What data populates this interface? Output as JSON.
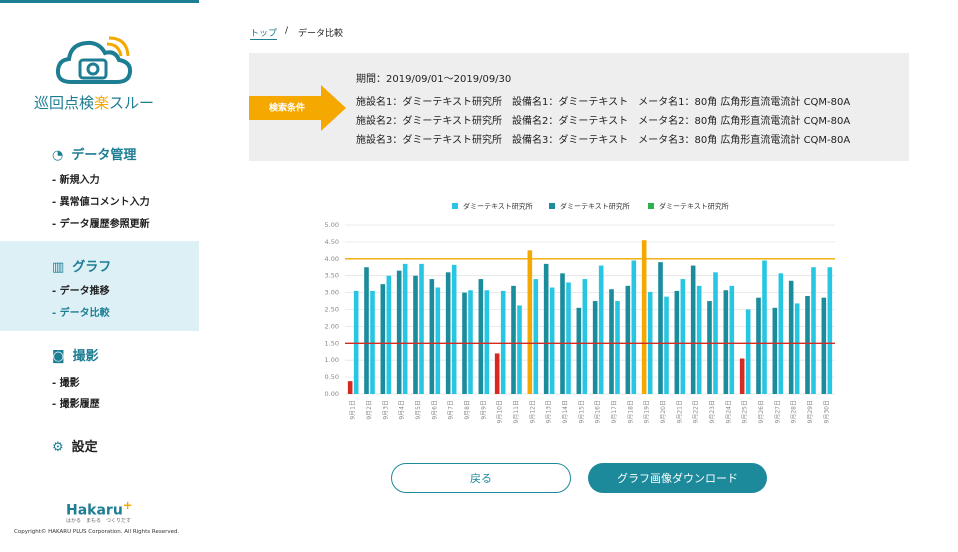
{
  "sidebar": {
    "logo_text": [
      "巡回点検",
      "楽",
      "スルー"
    ],
    "menu": [
      {
        "title": "データ管理",
        "items": [
          "- 新規入力",
          "- 異常値コメント入力",
          "- データ履歴参照更新"
        ]
      },
      {
        "title": "グラフ",
        "items": [
          "- データ推移",
          "- データ比較"
        ]
      },
      {
        "title": "撮影",
        "items": [
          "- 撮影",
          "- 撮影履歴"
        ]
      },
      {
        "title": "設定",
        "items": []
      }
    ],
    "brand": "Hakaru",
    "brand_mark": "+",
    "tagline": "はかる　まもる　つくりだす",
    "copyright": "Copyright© HAKARU PLUS Corporation. All Rights Reserved."
  },
  "breadcrumb": {
    "items": [
      "トップ",
      "データ比較"
    ],
    "separator": "/"
  },
  "search": {
    "label": "検索条件",
    "lines": [
      "期間：2019/09/01〜2019/09/30",
      "施設名1：ダミーテキスト研究所　設備名1：ダミーテキスト　メータ名1：80角 広角形直流電流計 CQM-80A",
      "施設名2：ダミーテキスト研究所　設備名2：ダミーテキスト　メータ名2：80角 広角形直流電流計 CQM-80A",
      "施設名3：ダミーテキスト研究所　設備名3：ダミーテキスト　メータ名3：80角 広角形直流電流計 CQM-80A"
    ]
  },
  "buttons": {
    "back": "戻る",
    "download": "グラフ画像ダウンロード"
  },
  "chart_data": {
    "type": "bar",
    "categories": [
      "9月1日",
      "9月2日",
      "9月3日",
      "9月4日",
      "9月5日",
      "9月6日",
      "9月7日",
      "9月8日",
      "9月9日",
      "9月10日",
      "9月11日",
      "9月12日",
      "9月13日",
      "9月14日",
      "9月15日",
      "9月16日",
      "9月17日",
      "9月18日",
      "9月19日",
      "9月20日",
      "9月21日",
      "9月22日",
      "9月23日",
      "9月24日",
      "9月25日",
      "9月26日",
      "9月27日",
      "9月28日",
      "9月29日",
      "9月30日"
    ],
    "series": [
      {
        "name": "ダミーテキスト研究所",
        "color": "#27c6e2",
        "values": [
          3.05,
          3.05,
          3.5,
          3.85,
          3.85,
          3.15,
          3.82,
          3.07,
          3.07,
          3.05,
          2.62,
          3.4,
          3.15,
          3.3,
          3.4,
          3.8,
          2.75,
          3.95,
          3.02,
          2.88,
          3.4,
          3.2,
          3.6,
          3.2,
          2.5,
          3.95,
          3.57,
          2.68,
          3.75,
          3.75
        ]
      },
      {
        "name": "ダミーテキスト研究所",
        "color": "#1a8c9c",
        "values": [
          0.38,
          3.75,
          3.25,
          3.65,
          3.5,
          3.4,
          3.6,
          3.0,
          3.4,
          1.2,
          3.2,
          4.25,
          3.85,
          3.57,
          2.55,
          2.75,
          3.1,
          3.2,
          4.55,
          3.9,
          3.05,
          3.8,
          2.75,
          3.07,
          1.05,
          2.85,
          2.55,
          3.35,
          2.9,
          2.85
        ]
      },
      {
        "name": "ダミーテキスト研究所",
        "color": "#2bb24c",
        "values": [
          null,
          null,
          null,
          null,
          null,
          null,
          null,
          null,
          null,
          null,
          null,
          null,
          null,
          null,
          null,
          null,
          null,
          null,
          null,
          null,
          null,
          null,
          null,
          null,
          null,
          null,
          null,
          null,
          null,
          null
        ]
      }
    ],
    "thresholds": [
      {
        "value": 4.0,
        "color": "#f5a800"
      },
      {
        "value": 1.5,
        "color": "#d42a20"
      }
    ],
    "ylim": [
      0,
      5
    ],
    "yticks": [
      {
        "value": 0,
        "label": "0.00"
      },
      {
        "value": 0.5,
        "label": "0.50"
      },
      {
        "value": 1,
        "label": "1.00"
      },
      {
        "value": 1.5,
        "label": "1.50"
      },
      {
        "value": 2,
        "label": "2.00"
      },
      {
        "value": 2.5,
        "label": "2.50"
      },
      {
        "value": 3,
        "label": "3.00"
      },
      {
        "value": 3.5,
        "label": "3.50"
      },
      {
        "value": 4,
        "label": "4.00"
      },
      {
        "value": 4.5,
        "label": "4.50"
      },
      {
        "value": 5,
        "label": "5.00"
      }
    ],
    "grid": true
  }
}
